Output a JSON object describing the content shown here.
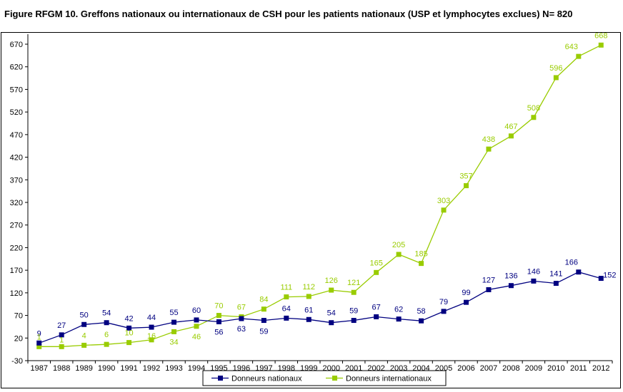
{
  "chart_data": {
    "type": "line",
    "title": "Figure RFGM 10. Greffons nationaux ou internationaux de CSH pour les patients nationaux (USP et lymphocytes exclues) N= 820",
    "xlabel": "",
    "ylabel": "",
    "categories": [
      "1987",
      "1988",
      "1989",
      "1990",
      "1991",
      "1992",
      "1993",
      "1994",
      "1995",
      "1996",
      "1997",
      "1998",
      "1999",
      "2000",
      "2001",
      "2002",
      "2003",
      "2004",
      "2005",
      "2006",
      "2007",
      "2008",
      "2009",
      "2010",
      "2011",
      "2012"
    ],
    "yticks": [
      -30,
      20,
      70,
      120,
      170,
      220,
      270,
      320,
      370,
      420,
      470,
      520,
      570,
      620,
      670
    ],
    "ylim": [
      -30,
      700
    ],
    "grid": false,
    "legend_position": "bottom",
    "series": [
      {
        "name": "Donneurs nationaux",
        "color": "#000080",
        "values": [
          9,
          27,
          50,
          54,
          42,
          44,
          55,
          60,
          56,
          63,
          59,
          64,
          61,
          54,
          59,
          67,
          62,
          58,
          79,
          99,
          127,
          136,
          146,
          141,
          166,
          152
        ],
        "labels": [
          "9",
          "27",
          "50",
          "54",
          "42",
          "44",
          "55",
          "60",
          "56",
          "63",
          "59",
          "64",
          "61",
          "54",
          "59",
          "67",
          "62",
          "58",
          "79",
          "99",
          "127",
          "136",
          "146",
          "141",
          "166",
          "152"
        ]
      },
      {
        "name": "Donneurs internationaux",
        "color": "#99CC00",
        "values": [
          1,
          1,
          4,
          6,
          10,
          16,
          34,
          46,
          70,
          67,
          84,
          111,
          112,
          126,
          121,
          165,
          205,
          185,
          303,
          357,
          438,
          467,
          508,
          596,
          643,
          668
        ],
        "labels": [
          "1",
          "1",
          "4",
          "6",
          "10",
          "16",
          "34",
          "46",
          "70",
          "67",
          "84",
          "111",
          "112",
          "126",
          "121",
          "165",
          "205",
          "185",
          "303",
          "357",
          "438",
          "467",
          "508",
          "596",
          "643",
          "668"
        ]
      }
    ]
  }
}
